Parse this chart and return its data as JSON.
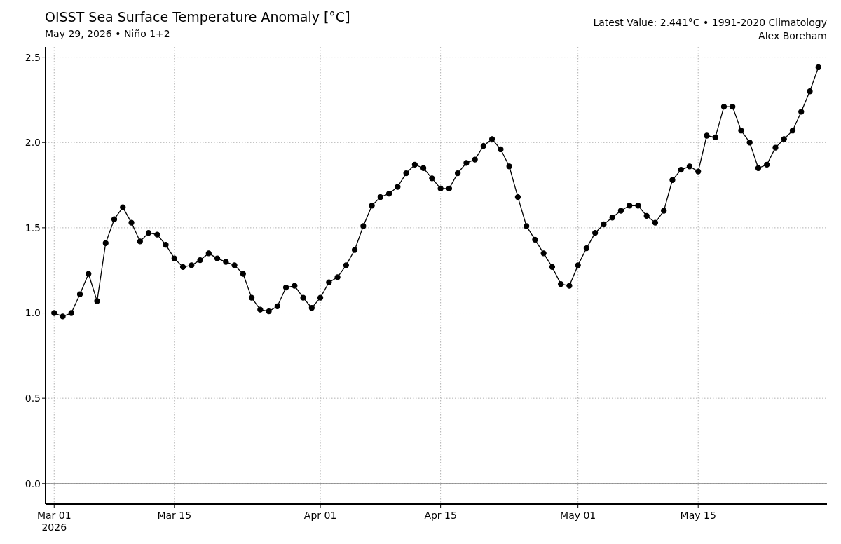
{
  "chart_data": {
    "type": "line",
    "title": "OISST Sea Surface Temperature Anomaly [°C]",
    "subtitle": "May 29, 2026 • Niño 1+2",
    "annotations": [
      "Latest Value: 2.441°C • 1991-2020 Climatology",
      "Alex Boreham"
    ],
    "x": [
      "2026-03-01",
      "2026-03-02",
      "2026-03-03",
      "2026-03-04",
      "2026-03-05",
      "2026-03-06",
      "2026-03-07",
      "2026-03-08",
      "2026-03-09",
      "2026-03-10",
      "2026-03-11",
      "2026-03-12",
      "2026-03-13",
      "2026-03-14",
      "2026-03-15",
      "2026-03-16",
      "2026-03-17",
      "2026-03-18",
      "2026-03-19",
      "2026-03-20",
      "2026-03-21",
      "2026-03-22",
      "2026-03-23",
      "2026-03-24",
      "2026-03-25",
      "2026-03-26",
      "2026-03-27",
      "2026-03-28",
      "2026-03-29",
      "2026-03-30",
      "2026-03-31",
      "2026-04-01",
      "2026-04-02",
      "2026-04-03",
      "2026-04-04",
      "2026-04-05",
      "2026-04-06",
      "2026-04-07",
      "2026-04-08",
      "2026-04-09",
      "2026-04-10",
      "2026-04-11",
      "2026-04-12",
      "2026-04-13",
      "2026-04-14",
      "2026-04-15",
      "2026-04-16",
      "2026-04-17",
      "2026-04-18",
      "2026-04-19",
      "2026-04-20",
      "2026-04-21",
      "2026-04-22",
      "2026-04-23",
      "2026-04-24",
      "2026-04-25",
      "2026-04-26",
      "2026-04-27",
      "2026-04-28",
      "2026-04-29",
      "2026-04-30",
      "2026-05-01",
      "2026-05-02",
      "2026-05-03",
      "2026-05-04",
      "2026-05-05",
      "2026-05-06",
      "2026-05-07",
      "2026-05-08",
      "2026-05-09",
      "2026-05-10",
      "2026-05-11",
      "2026-05-12",
      "2026-05-13",
      "2026-05-14",
      "2026-05-15",
      "2026-05-16",
      "2026-05-17",
      "2026-05-18",
      "2026-05-19",
      "2026-05-20",
      "2026-05-21",
      "2026-05-22",
      "2026-05-23",
      "2026-05-24",
      "2026-05-25",
      "2026-05-26",
      "2026-05-27",
      "2026-05-28",
      "2026-05-29"
    ],
    "series": [
      {
        "color": "#000000",
        "values": [
          1.0,
          0.98,
          1.0,
          1.11,
          1.23,
          1.07,
          1.41,
          1.55,
          1.62,
          1.53,
          1.42,
          1.47,
          1.46,
          1.4,
          1.32,
          1.27,
          1.28,
          1.31,
          1.35,
          1.32,
          1.3,
          1.28,
          1.23,
          1.09,
          1.02,
          1.01,
          1.04,
          1.15,
          1.16,
          1.09,
          1.03,
          1.09,
          1.18,
          1.21,
          1.28,
          1.37,
          1.51,
          1.63,
          1.68,
          1.7,
          1.74,
          1.82,
          1.87,
          1.85,
          1.79,
          1.73,
          1.73,
          1.82,
          1.88,
          1.9,
          1.98,
          2.02,
          1.96,
          1.86,
          1.68,
          1.51,
          1.43,
          1.35,
          1.27,
          1.17,
          1.16,
          1.28,
          1.38,
          1.47,
          1.52,
          1.56,
          1.6,
          1.63,
          1.63,
          1.57,
          1.53,
          1.6,
          1.78,
          1.84,
          1.86,
          1.83,
          2.04,
          2.03,
          2.21,
          2.21,
          2.07,
          2.0,
          1.85,
          1.87,
          1.97,
          2.02,
          2.07,
          2.18,
          2.3,
          2.441
        ]
      }
    ],
    "xlim": [
      "2026-02-28",
      "2026-05-30"
    ],
    "xticks": [
      {
        "value": "2026-03-01",
        "label": "Mar 01\n2026"
      },
      {
        "value": "2026-03-15",
        "label": "Mar 15"
      },
      {
        "value": "2026-04-01",
        "label": "Apr 01"
      },
      {
        "value": "2026-04-15",
        "label": "Apr 15"
      },
      {
        "value": "2026-05-01",
        "label": "May 01"
      },
      {
        "value": "2026-05-15",
        "label": "May 15"
      }
    ],
    "ylim": [
      -0.12,
      2.56
    ],
    "yticks": [
      {
        "value": 0,
        "label": "0.0"
      },
      0.5,
      {
        "value": 1,
        "label": "1.0"
      },
      1.5,
      {
        "value": 2,
        "label": "2.0"
      },
      2.5
    ],
    "ref_lines": [
      {
        "axis": "y",
        "value": 0,
        "color": "#808080"
      }
    ],
    "grid": true,
    "marker": "circle",
    "line_style": "solid"
  }
}
